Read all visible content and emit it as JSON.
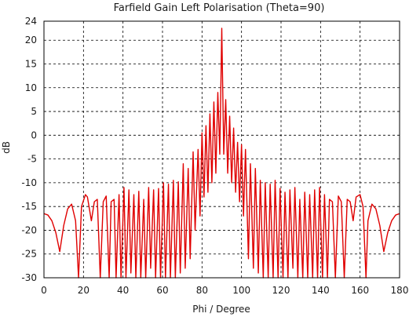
{
  "chart_data": {
    "type": "line",
    "title": "Farfield Gain Left Polarisation (Theta=90)",
    "xlabel": "Phi / Degree",
    "ylabel": "dB",
    "xlim": [
      0,
      180
    ],
    "ylim": [
      -30,
      24
    ],
    "xticks": [
      0,
      20,
      40,
      60,
      80,
      100,
      120,
      140,
      160,
      180
    ],
    "yticks": [
      -30,
      -25,
      -20,
      -15,
      -10,
      -5,
      0,
      5,
      10,
      15,
      20,
      24
    ],
    "grid": true,
    "series": [
      {
        "color": "#e00000",
        "x": [
          0,
          2,
          4,
          6,
          8,
          10,
          12,
          14,
          16,
          17.5,
          19,
          21,
          22,
          24,
          25.5,
          27,
          28.5,
          30,
          31.5,
          33,
          34,
          35.5,
          36.5,
          38,
          39,
          40.5,
          41.5,
          43,
          44,
          45.5,
          46.5,
          48,
          49,
          50.5,
          51.5,
          53,
          54,
          55.5,
          56.5,
          58,
          59,
          60.5,
          61.5,
          63,
          64,
          65.5,
          66.5,
          68,
          69,
          70.5,
          71.5,
          73,
          74,
          75.5,
          76.5,
          78,
          79,
          80,
          81,
          82,
          83,
          84,
          85,
          86,
          87,
          88,
          89,
          90,
          91,
          92,
          93,
          94,
          95,
          96,
          97,
          98,
          99,
          100,
          101,
          102,
          103.5,
          104.5,
          106,
          107,
          108.5,
          109.5,
          111,
          112,
          113.5,
          114.5,
          116,
          117,
          118.5,
          119.5,
          121,
          122,
          123.5,
          124.5,
          126,
          127,
          128.5,
          129.5,
          131,
          132,
          133.5,
          134.5,
          136,
          137,
          138.5,
          139.5,
          141,
          142,
          143.5,
          144.5,
          146,
          147.5,
          149,
          150.5,
          152,
          153.5,
          155,
          156.5,
          158,
          160,
          161.5,
          163,
          164,
          166,
          168,
          170,
          172,
          174,
          176,
          178,
          180
        ],
        "y": [
          -16.5,
          -16.8,
          -18,
          -20.5,
          -24.5,
          -19,
          -15.5,
          -14.5,
          -18,
          -30,
          -15,
          -12.5,
          -13,
          -18,
          -14,
          -13.5,
          -30,
          -14,
          -12.8,
          -30,
          -14,
          -13.5,
          -30,
          -12.5,
          -30,
          -11,
          -30,
          -11.5,
          -29,
          -12.5,
          -30,
          -11.8,
          -30,
          -13.5,
          -30,
          -11,
          -28,
          -11.5,
          -30,
          -11.2,
          -30,
          -10,
          -30,
          -10.3,
          -30,
          -9.5,
          -30,
          -9.8,
          -29,
          -6,
          -28,
          -7,
          -26,
          -3.5,
          -20,
          -3,
          -17,
          0.5,
          -13,
          2,
          -12,
          4.5,
          -10,
          7,
          -8,
          9,
          -4,
          22.5,
          -4,
          7.5,
          -8,
          4,
          -10,
          1.5,
          -12,
          -1.5,
          -14,
          -2,
          -17,
          -3,
          -26,
          -6,
          -28,
          -7,
          -29,
          -9.5,
          -30,
          -10,
          -30,
          -10.3,
          -30,
          -9.5,
          -30,
          -11.2,
          -30,
          -12,
          -30,
          -11.5,
          -28,
          -11,
          -30,
          -13.5,
          -30,
          -12,
          -30,
          -12.5,
          -30,
          -11.5,
          -30,
          -11,
          -30,
          -12.5,
          -30,
          -13.5,
          -14,
          -30,
          -12.8,
          -14,
          -30,
          -13.5,
          -14,
          -18,
          -13,
          -12.5,
          -15,
          -30,
          -18,
          -14.5,
          -15.5,
          -19,
          -24.5,
          -20.5,
          -18,
          -16.8,
          -16.5
        ]
      }
    ]
  }
}
